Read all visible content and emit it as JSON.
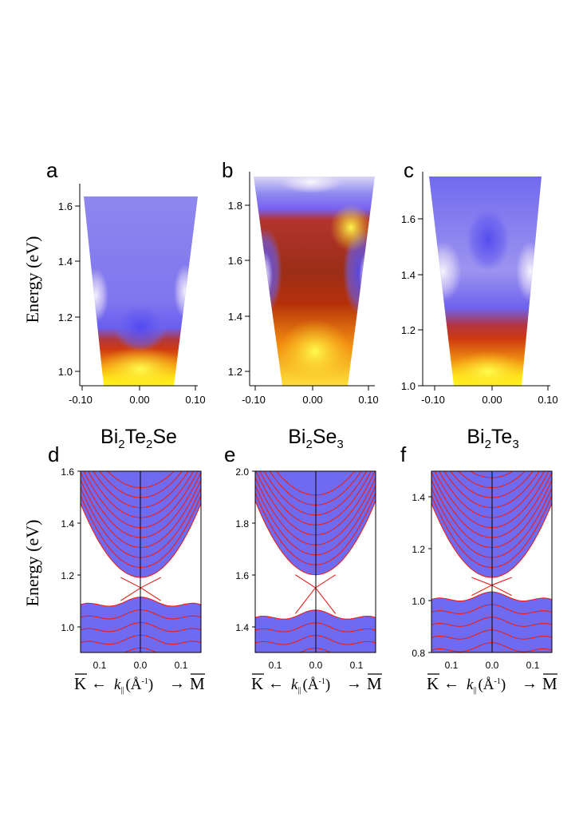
{
  "figure": {
    "panel_letters": [
      "a",
      "b",
      "c",
      "d",
      "e",
      "f"
    ],
    "materials": [
      {
        "name": "Bi",
        "sub1": "2",
        "mid": "Te",
        "sub2": "2",
        "end": "Se"
      },
      {
        "name": "Bi",
        "sub1": "2",
        "mid": "Se",
        "sub2": "3",
        "end": ""
      },
      {
        "name": "Bi",
        "sub1": "2",
        "mid": "Te",
        "sub2": "3",
        "end": ""
      }
    ],
    "ylabel_top": "Energy (eV)",
    "ylabel_bottom": "Energy (eV)",
    "k_label": {
      "left": "K",
      "right": "M",
      "arrow_left": "←",
      "arrow_right": "→",
      "k": "k",
      "k_sub": "||",
      "unit_open": "(Å",
      "unit_exp": "-1",
      "unit_close": ")"
    }
  },
  "chart_data": [
    {
      "type": "heatmap",
      "panel": "a",
      "title": "",
      "xlim": [
        -0.12,
        0.12
      ],
      "ylim": [
        0.96,
        1.67
      ],
      "xticks": [
        -0.1,
        0.0,
        0.1
      ],
      "xtick_labels": [
        "-0.10",
        "0.00",
        "0.10"
      ],
      "yticks": [
        1.0,
        1.2,
        1.4,
        1.6
      ],
      "ytick_labels": [
        "1.0",
        "1.2",
        "1.4",
        "1.6"
      ],
      "data_region": {
        "top_energy": 1.63,
        "top_k": [
          -0.098,
          0.106
        ],
        "bottom_k": [
          -0.064,
          0.066
        ]
      },
      "dirac_point_energy": 1.23,
      "valence_edge_energy": 1.1,
      "colormap": "white-blue-red-yellow"
    },
    {
      "type": "heatmap",
      "panel": "b",
      "title": "",
      "xlim": [
        -0.115,
        0.115
      ],
      "ylim": [
        1.16,
        1.9
      ],
      "xticks": [
        -0.1,
        0.0,
        0.1
      ],
      "xtick_labels": [
        "-0.10",
        "0.00",
        "0.10"
      ],
      "yticks": [
        1.2,
        1.4,
        1.6,
        1.8
      ],
      "ytick_labels": [
        "1.2",
        "1.4",
        "1.6",
        "1.8"
      ],
      "data_region": {
        "top_energy": 1.88,
        "top_k": [
          -0.105,
          0.11
        ],
        "bottom_k": [
          -0.045,
          0.055
        ]
      },
      "dirac_point_energy": 1.46,
      "colormap": "white-blue-red-yellow"
    },
    {
      "type": "heatmap",
      "panel": "c",
      "title": "",
      "xlim": [
        -0.11,
        0.11
      ],
      "ylim": [
        1.0,
        1.75
      ],
      "xticks": [
        -0.1,
        0.0,
        0.1
      ],
      "xtick_labels": [
        "-0.10",
        "0.00",
        "0.10"
      ],
      "yticks": [
        1.0,
        1.2,
        1.4,
        1.6
      ],
      "ytick_labels": [
        "1.0",
        "1.2",
        "1.4",
        "1.6"
      ],
      "data_region": {
        "top_energy": 1.75,
        "top_k": [
          -0.065,
          0.085
        ],
        "bottom_k": [
          -0.045,
          0.045
        ]
      },
      "dirac_point_energy": 1.32,
      "valence_edge_energy": 1.17,
      "colormap": "white-blue-red-yellow"
    },
    {
      "type": "line",
      "panel": "d",
      "title": "",
      "xlim": [
        -0.165,
        0.165
      ],
      "ylim": [
        0.9,
        1.6
      ],
      "xticks": [
        -0.1,
        0.0,
        0.1
      ],
      "xtick_labels": [
        "0.1",
        "0.0",
        "0.1"
      ],
      "yticks": [
        1.0,
        1.2,
        1.4,
        1.6
      ],
      "ytick_labels": [
        "1.0",
        "1.2",
        "1.4",
        "1.6"
      ],
      "dirac_point": {
        "k": 0.0,
        "energy": 1.15
      },
      "conduction_band_edge": 1.19,
      "valence_band_edge": 1.1,
      "conduction_band_count": 10,
      "valence_band_count": 9
    },
    {
      "type": "line",
      "panel": "e",
      "title": "",
      "xlim": [
        -0.165,
        0.165
      ],
      "ylim": [
        1.3,
        2.0
      ],
      "xticks": [
        -0.1,
        0.0,
        0.1
      ],
      "xtick_labels": [
        "0.1",
        "0.0",
        "0.1"
      ],
      "yticks": [
        1.4,
        1.6,
        1.8,
        2.0
      ],
      "ytick_labels": [
        "1.4",
        "1.6",
        "1.8",
        "2.0"
      ],
      "dirac_point": {
        "k": 0.0,
        "energy": 1.55
      },
      "conduction_band_edge": 1.6,
      "valence_band_edge": 1.45,
      "conduction_band_count": 9,
      "valence_band_count": 7
    },
    {
      "type": "line",
      "panel": "f",
      "title": "",
      "xlim": [
        -0.165,
        0.165
      ],
      "ylim": [
        0.8,
        1.5
      ],
      "xticks": [
        -0.1,
        0.0,
        0.1
      ],
      "xtick_labels": [
        "0.1",
        "0.0",
        "0.1"
      ],
      "yticks": [
        0.8,
        1.0,
        1.2,
        1.4
      ],
      "ytick_labels": [
        "0.8",
        "1.0",
        "1.2",
        "1.4"
      ],
      "dirac_point": {
        "k": 0.0,
        "energy": 1.06
      },
      "conduction_band_edge": 1.09,
      "valence_band_edge": 1.02,
      "conduction_band_count": 11,
      "valence_band_count": 8
    }
  ]
}
